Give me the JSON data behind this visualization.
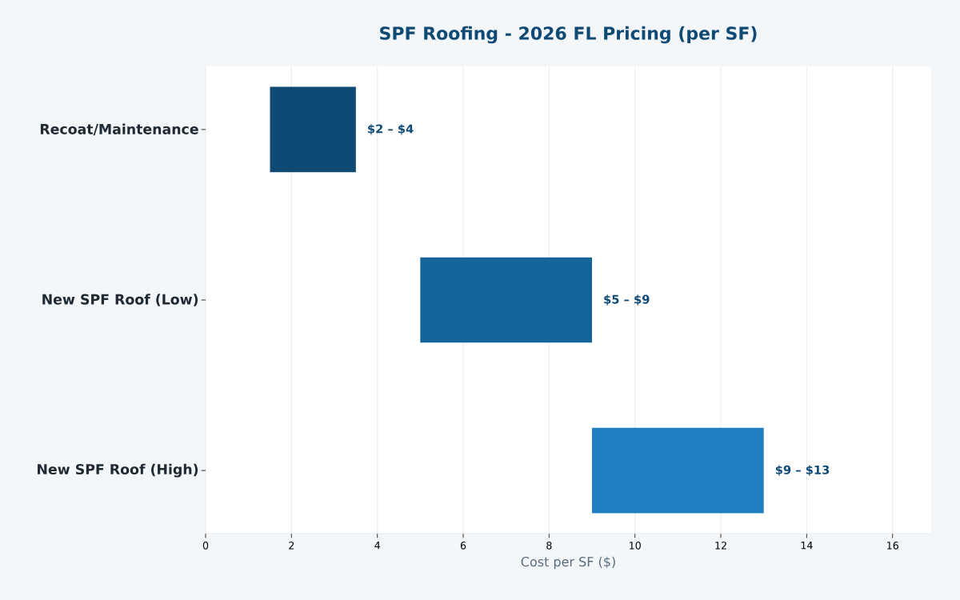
{
  "chart_data": {
    "type": "bar",
    "orientation": "horizontal",
    "title": "SPF Roofing - 2026 FL Pricing (per SF)",
    "xlabel": "Cost per SF ($)",
    "categories": [
      "Recoat/Maintenance",
      "New SPF Roof (Low)",
      "New SPF Roof (High)"
    ],
    "base": [
      1.5,
      5,
      9
    ],
    "values": [
      2,
      4,
      4
    ],
    "colors": [
      "#0f4a75",
      "#15659b",
      "#1f7fc1"
    ],
    "annotations": [
      {
        "text": "$2 – $4",
        "x": 3.5,
        "y": "Recoat/Maintenance"
      },
      {
        "text": "$5 – $9",
        "x": 9,
        "y": "New SPF Roof (Low)"
      },
      {
        "text": "$9 – $13",
        "x": 13,
        "y": "New SPF Roof (High)"
      }
    ],
    "xlim": [
      0,
      16.9
    ],
    "xticks": [
      0,
      2,
      4,
      6,
      8,
      10,
      12,
      14,
      16
    ],
    "grid": "x"
  }
}
